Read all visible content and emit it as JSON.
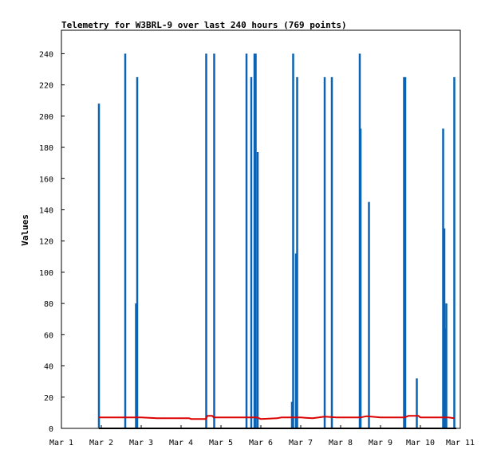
{
  "chart_data": {
    "type": "bar",
    "title": "Telemetry for W3BRL-9 over last 240 hours (769 points)",
    "xlabel": "",
    "ylabel": "Values",
    "ylim": [
      0,
      255
    ],
    "xlim": [
      0,
      10
    ],
    "yticks": [
      0,
      20,
      40,
      60,
      80,
      100,
      120,
      140,
      160,
      180,
      200,
      220,
      240
    ],
    "xticks": [
      {
        "pos": 0,
        "label": "Mar 1"
      },
      {
        "pos": 1,
        "label": "Mar 2"
      },
      {
        "pos": 2,
        "label": "Mar 3"
      },
      {
        "pos": 3,
        "label": "Mar 4"
      },
      {
        "pos": 4,
        "label": "Mar 5"
      },
      {
        "pos": 5,
        "label": "Mar 6"
      },
      {
        "pos": 6,
        "label": "Mar 7"
      },
      {
        "pos": 7,
        "label": "Mar 8"
      },
      {
        "pos": 8,
        "label": "Mar 9"
      },
      {
        "pos": 9,
        "label": "Mar 10"
      },
      {
        "pos": 10,
        "label": "Mar 11"
      }
    ],
    "grid": false,
    "legend": "none",
    "series": [
      {
        "type": "spike",
        "color": "#0a63b5",
        "points": [
          [
            0.94,
            208
          ],
          [
            1.6,
            240
          ],
          [
            1.87,
            80
          ],
          [
            1.9,
            225
          ],
          [
            3.63,
            240
          ],
          [
            3.83,
            240
          ],
          [
            4.64,
            240
          ],
          [
            4.76,
            225
          ],
          [
            4.84,
            240
          ],
          [
            4.87,
            240
          ],
          [
            4.92,
            177
          ],
          [
            5.78,
            17
          ],
          [
            5.81,
            240
          ],
          [
            5.88,
            112
          ],
          [
            5.91,
            225
          ],
          [
            6.6,
            225
          ],
          [
            6.78,
            225
          ],
          [
            7.48,
            240
          ],
          [
            7.5,
            192
          ],
          [
            7.71,
            145
          ],
          [
            8.59,
            225
          ],
          [
            8.62,
            225
          ],
          [
            8.91,
            32
          ],
          [
            9.57,
            192
          ],
          [
            9.6,
            128
          ],
          [
            9.62,
            64
          ],
          [
            9.65,
            80
          ],
          [
            9.85,
            225
          ]
        ]
      },
      {
        "type": "line",
        "color": "#dd0000",
        "points": [
          [
            0.94,
            7
          ],
          [
            1.5,
            7
          ],
          [
            2.0,
            7
          ],
          [
            2.4,
            6.5
          ],
          [
            3.2,
            6.5
          ],
          [
            3.25,
            6
          ],
          [
            3.62,
            6
          ],
          [
            3.66,
            8
          ],
          [
            3.78,
            8
          ],
          [
            3.82,
            7
          ],
          [
            4.6,
            7
          ],
          [
            4.9,
            7
          ],
          [
            5.0,
            6
          ],
          [
            5.4,
            6.5
          ],
          [
            5.52,
            7
          ],
          [
            5.8,
            7
          ],
          [
            6.0,
            7
          ],
          [
            6.3,
            6.5
          ],
          [
            6.6,
            7.5
          ],
          [
            6.9,
            7
          ],
          [
            7.5,
            7
          ],
          [
            7.65,
            7.8
          ],
          [
            8.0,
            7
          ],
          [
            8.6,
            7
          ],
          [
            8.7,
            8
          ],
          [
            8.95,
            8
          ],
          [
            9.0,
            7
          ],
          [
            9.7,
            7
          ],
          [
            9.85,
            6.5
          ]
        ]
      },
      {
        "type": "line",
        "color": "#000000",
        "points": [
          [
            0.94,
            0
          ],
          [
            9.9,
            0
          ]
        ]
      }
    ]
  }
}
